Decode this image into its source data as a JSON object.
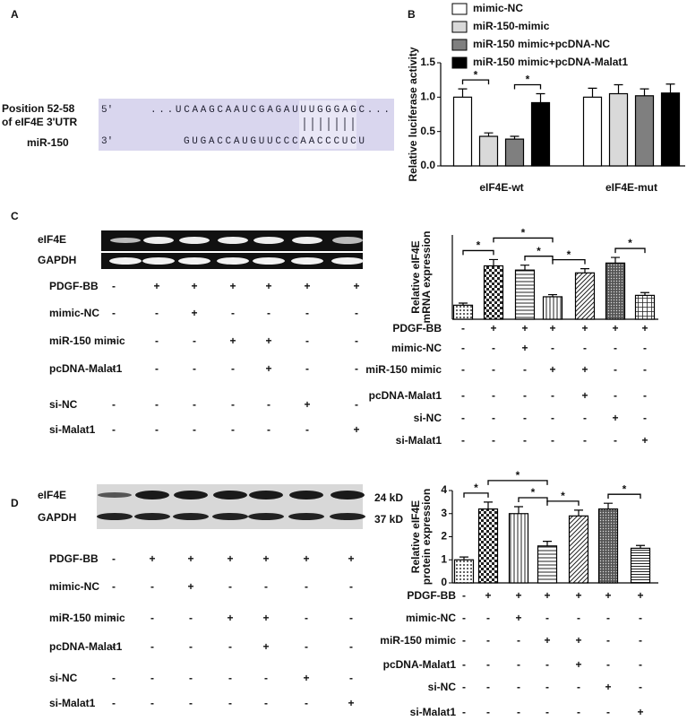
{
  "panel_a": {
    "label": "A",
    "position_lines": [
      "Position 52-58",
      "of eIF4E 3'UTR"
    ],
    "mirna": "miR-150",
    "utr": {
      "end": "5'",
      "sequence": "...UCAAGCAAUCGAGAUUUGGGAGC..."
    },
    "mir": {
      "end": "3'",
      "sequence": "GUGACCAUGUUCCCAACCCUCU"
    }
  },
  "panel_b": {
    "label": "B"
  },
  "panel_c": {
    "label": "C",
    "gel_labels": [
      "eIF4E",
      "GAPDH"
    ]
  },
  "panel_d": {
    "label": "D",
    "gel_labels": [
      "eIF4E",
      "GAPDH"
    ],
    "sizes": [
      "24 kD",
      "37 kD"
    ]
  },
  "treatments": [
    {
      "label": "PDGF-BB",
      "signs": [
        "-",
        "+",
        "+",
        "+",
        "+",
        "+",
        "+"
      ]
    },
    {
      "label": "mimic-NC",
      "signs": [
        "-",
        "-",
        "+",
        "-",
        "-",
        "-",
        "-"
      ]
    },
    {
      "label": "miR-150 mimic",
      "signs": [
        "-",
        "-",
        "-",
        "+",
        "+",
        "-",
        "-"
      ]
    },
    {
      "label": "pcDNA-Malat1",
      "signs": [
        "-",
        "-",
        "-",
        "-",
        "+",
        "-",
        "-"
      ]
    },
    {
      "label": "si-NC",
      "signs": [
        "-",
        "-",
        "-",
        "-",
        "-",
        "+",
        "-"
      ]
    },
    {
      "label": "si-Malat1",
      "signs": [
        "-",
        "-",
        "-",
        "-",
        "-",
        "-",
        "+"
      ]
    }
  ],
  "chart_data": [
    {
      "type": "bar",
      "ylabel": [
        "Relative luciferase activity"
      ],
      "categories": [
        "eIF4E-wt",
        "eIF4E-mut"
      ],
      "series": [
        {
          "name": "mimic-NC",
          "color": "#ffffff",
          "values": [
            1.0,
            1.0
          ],
          "errors": [
            0.12,
            0.13
          ]
        },
        {
          "name": "miR-150-mimic",
          "color": "#d9d9d9",
          "values": [
            0.43,
            1.05
          ],
          "errors": [
            0.05,
            0.13
          ]
        },
        {
          "name": "miR-150 mimic+pcDNA-NC",
          "color": "#7f7f7f",
          "values": [
            0.39,
            1.02
          ],
          "errors": [
            0.04,
            0.1
          ]
        },
        {
          "name": "miR-150 mimic+pcDNA-Malat1",
          "color": "#000000",
          "values": [
            0.92,
            1.06
          ],
          "errors": [
            0.13,
            0.13
          ]
        }
      ],
      "ylim": [
        0,
        1.5
      ],
      "yticks": [
        {
          "value": 0,
          "label": "0.0"
        },
        {
          "value": 0.5,
          "label": "0.5"
        },
        {
          "value": 1.0,
          "label": "1.0"
        },
        {
          "value": 1.5,
          "label": "1.5"
        }
      ],
      "annotations": [
        {
          "text": "*",
          "category": 0,
          "between": [
            0,
            1
          ]
        },
        {
          "text": "*",
          "category": 0,
          "between": [
            2,
            3
          ]
        }
      ]
    },
    {
      "type": "bar",
      "ylabel": [
        "Relative eIF4E",
        "mRNA expression"
      ],
      "values": [
        1.0,
        3.8,
        3.5,
        1.6,
        3.3,
        4.0,
        1.7
      ],
      "errors": [
        0.15,
        0.45,
        0.35,
        0.15,
        0.3,
        0.4,
        0.2
      ],
      "patterns": [
        "dots",
        "checker",
        "hlines",
        "vlines",
        "diag",
        "dense",
        "grid"
      ],
      "ylim": [
        0,
        6
      ],
      "annotations": [
        {
          "text": "*",
          "between": [
            0,
            1
          ]
        },
        {
          "text": "*",
          "between": [
            1,
            3
          ]
        },
        {
          "text": "*",
          "between": [
            2,
            3
          ]
        },
        {
          "text": "*",
          "between": [
            3,
            4
          ]
        },
        {
          "text": "*",
          "between": [
            5,
            6
          ]
        }
      ]
    },
    {
      "type": "bar",
      "ylabel": [
        "Relative eIF4E",
        "protein expression"
      ],
      "values": [
        1.0,
        3.2,
        3.0,
        1.6,
        2.9,
        3.2,
        1.5
      ],
      "errors": [
        0.12,
        0.3,
        0.3,
        0.2,
        0.25,
        0.25,
        0.12
      ],
      "patterns": [
        "dots",
        "checker",
        "vlines",
        "hlines",
        "diag",
        "dense",
        "hdense"
      ],
      "ylim": [
        0,
        4
      ],
      "yticks": [
        0,
        1,
        2,
        3,
        4
      ],
      "annotations": [
        {
          "text": "*",
          "between": [
            0,
            1
          ]
        },
        {
          "text": "*",
          "between": [
            1,
            3
          ]
        },
        {
          "text": "*",
          "between": [
            2,
            3
          ]
        },
        {
          "text": "*",
          "between": [
            3,
            4
          ]
        },
        {
          "text": "*",
          "between": [
            5,
            6
          ]
        }
      ]
    }
  ]
}
